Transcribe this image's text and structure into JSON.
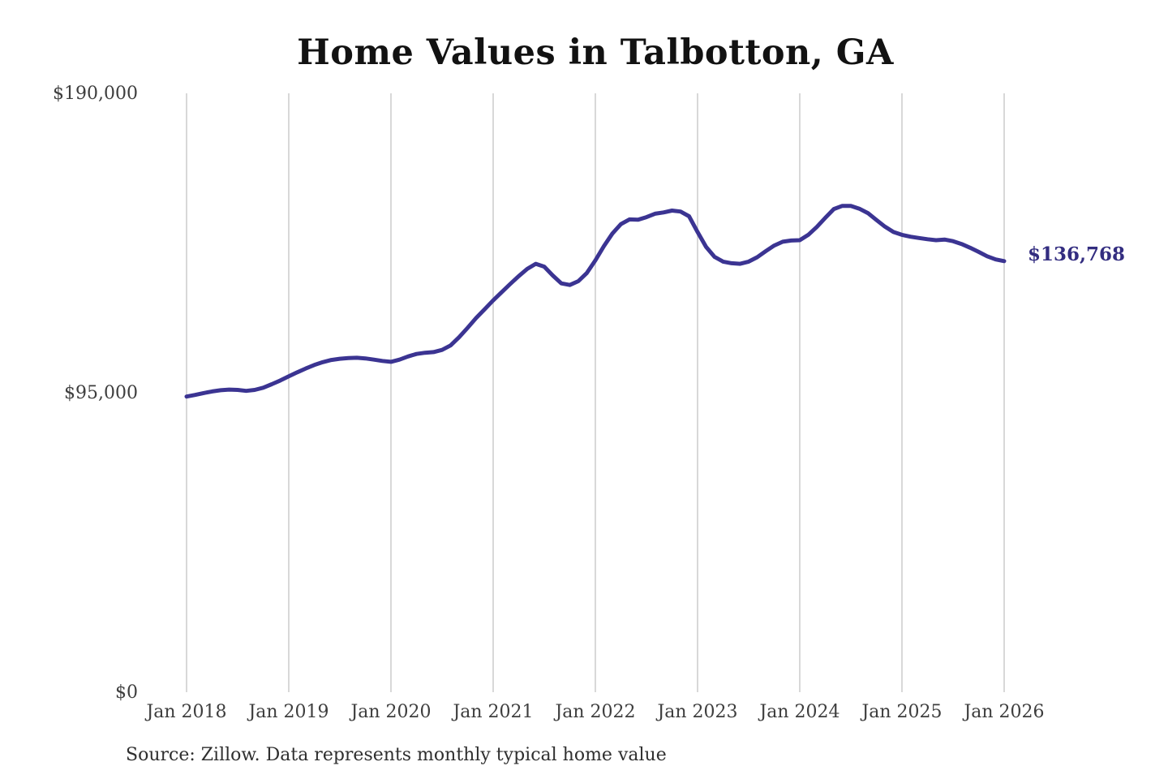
{
  "title": "Home Values in Talbotton, GA",
  "source_note": "Source: Zillow. Data represents monthly typical home value",
  "annotation": {
    "label": "$136,768",
    "color": "#332d80"
  },
  "colors": {
    "background": "#ffffff",
    "title_text": "#121212",
    "axis_tick_text": "#3e3e3e",
    "gridline": "#cccccc",
    "line": "#3b3492",
    "source_text": "#2f2f2f"
  },
  "chart_data": {
    "type": "line",
    "title": "Home Values in Talbotton, GA",
    "xlabel": "",
    "ylabel": "",
    "ylim": [
      0,
      190000
    ],
    "grid": "vertical-only",
    "legend": "none",
    "x_frequency": "monthly",
    "x_start": "Jan 2018",
    "x_end": "Jan 2026",
    "x_tick_labels": [
      "Jan 2018",
      "Jan 2019",
      "Jan 2020",
      "Jan 2021",
      "Jan 2022",
      "Jan 2023",
      "Jan 2024",
      "Jan 2025",
      "Jan 2026"
    ],
    "y_ticks": [
      {
        "label": "$0",
        "value": 0
      },
      {
        "label": "$95,000",
        "value": 95000
      },
      {
        "label": "$190,000",
        "value": 190000
      }
    ],
    "series_name": "Monthly typical home value ($)",
    "values": [
      93800,
      94300,
      94900,
      95400,
      95800,
      96000,
      95900,
      95600,
      95900,
      96600,
      97700,
      98900,
      100200,
      101500,
      102700,
      103800,
      104700,
      105400,
      105800,
      106000,
      106100,
      105900,
      105500,
      105100,
      104800,
      105500,
      106500,
      107300,
      107700,
      107900,
      108600,
      110000,
      112600,
      115600,
      118700,
      121500,
      124300,
      126900,
      129500,
      132000,
      134300,
      135900,
      135000,
      132200,
      129700,
      129200,
      130400,
      133000,
      137000,
      141500,
      145500,
      148500,
      150000,
      149900,
      150700,
      151800,
      152200,
      152800,
      152500,
      151000,
      146000,
      141300,
      138100,
      136600,
      136100,
      135900,
      136600,
      138000,
      139900,
      141700,
      142900,
      143300,
      143400,
      145100,
      147600,
      150500,
      153300,
      154300,
      154300,
      153400,
      152000,
      149800,
      147700,
      146000,
      145100,
      144500,
      144100,
      143700,
      143400,
      143600,
      143100,
      142200,
      141000,
      139700,
      138300,
      137300,
      136768
    ],
    "last_value": 136768,
    "last_value_label": "$136,768"
  }
}
